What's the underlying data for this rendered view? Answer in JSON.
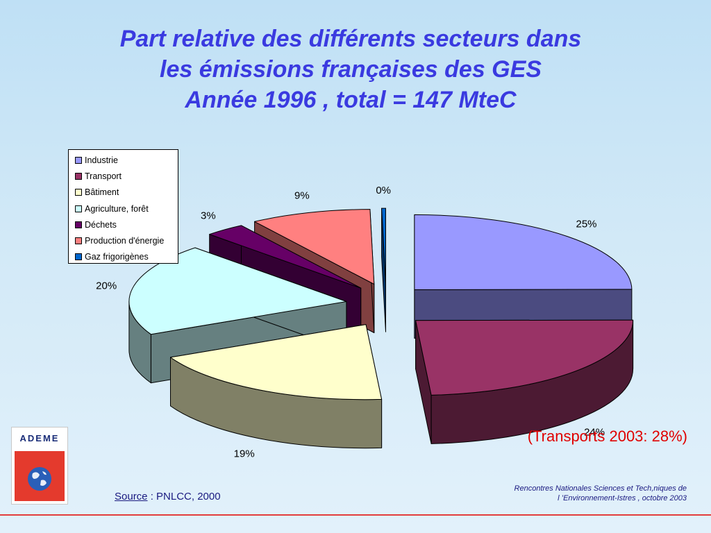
{
  "title": {
    "line1": "Part relative des différents secteurs dans",
    "line2": "les émissions françaises des GES",
    "line3": "Année 1996 , total = 147 MteC"
  },
  "chart_data": {
    "type": "pie",
    "title": "Part relative des différents secteurs dans les émissions françaises des GES Année 1996 , total = 147 MteC",
    "exploded": true,
    "three_d": true,
    "legend_position": "top-left",
    "series": [
      {
        "name": "Industrie",
        "value": 25,
        "label": "25%",
        "color": "#9999ff",
        "side": "#4b4b80"
      },
      {
        "name": "Transport",
        "value": 24,
        "label": "24%",
        "color": "#993366",
        "side": "#4c1a33"
      },
      {
        "name": "Bâtiment",
        "value": 19,
        "label": "19%",
        "color": "#ffffcc",
        "side": "#808066"
      },
      {
        "name": "Agriculture, forêt",
        "value": 20,
        "label": "20%",
        "color": "#ccffff",
        "side": "#668080"
      },
      {
        "name": "Déchets",
        "value": 3,
        "label": "3%",
        "color": "#660066",
        "side": "#330033"
      },
      {
        "name": "Production d'énergie",
        "value": 9,
        "label": "9%",
        "color": "#ff8080",
        "side": "#804040"
      },
      {
        "name": "Gaz frigorigènes",
        "value": 0.3,
        "label": "0%",
        "color": "#0066cc",
        "side": "#003366"
      }
    ]
  },
  "note": "(Transports 2003: 28%)",
  "logo": {
    "text": "ADEME"
  },
  "source": {
    "link_text": "Source",
    "rest": " : PNLCC, 2000"
  },
  "conference": {
    "line1": "Rencontres Nationales Sciences et Tech,niques de",
    "line2": "l ’Environnement-Istres , octobre  2003"
  },
  "colors": {
    "title": "#3a3ae0",
    "note": "#e00000",
    "rule": "#e23d3d"
  }
}
